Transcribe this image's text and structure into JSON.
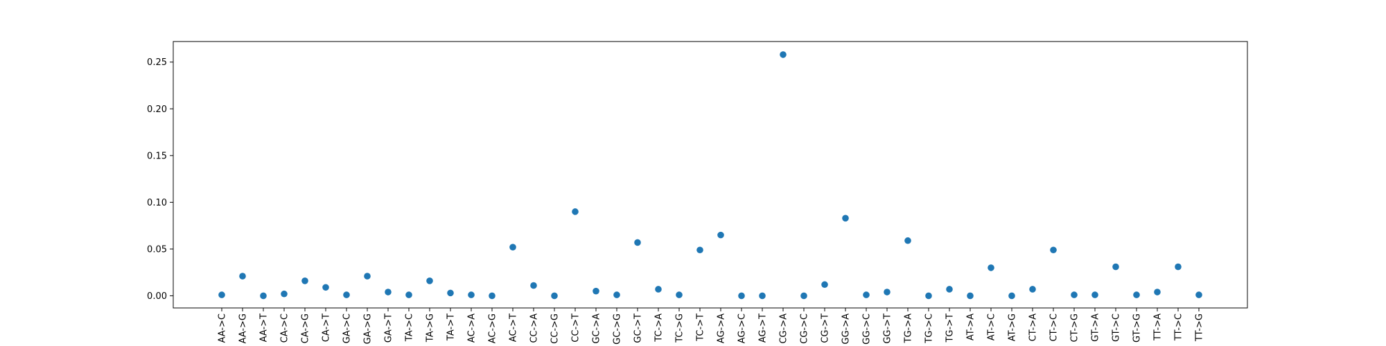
{
  "chart_data": {
    "type": "scatter",
    "title": "",
    "xlabel": "",
    "ylabel": "",
    "ylim": [
      -0.013,
      0.272
    ],
    "grid": false,
    "legend": "none",
    "marker_color": "#1f77b4",
    "yticks": [
      {
        "value": 0.0,
        "label": "0.00"
      },
      {
        "value": 0.05,
        "label": "0.05"
      },
      {
        "value": 0.1,
        "label": "0.10"
      },
      {
        "value": 0.15,
        "label": "0.15"
      },
      {
        "value": 0.2,
        "label": "0.20"
      },
      {
        "value": 0.25,
        "label": "0.25"
      }
    ],
    "categories": [
      "AA->C",
      "AA->G",
      "AA->T",
      "CA->C",
      "CA->G",
      "CA->T",
      "GA->C",
      "GA->G",
      "GA->T",
      "TA->C",
      "TA->G",
      "TA->T",
      "AC->A",
      "AC->G",
      "AC->T",
      "CC->A",
      "CC->G",
      "CC->T",
      "GC->A",
      "GC->G",
      "GC->T",
      "TC->A",
      "TC->G",
      "TC->T",
      "AG->A",
      "AG->C",
      "AG->T",
      "CG->A",
      "CG->C",
      "CG->T",
      "GG->A",
      "GG->C",
      "GG->T",
      "TG->A",
      "TG->C",
      "TG->T",
      "AT->A",
      "AT->C",
      "AT->G",
      "CT->A",
      "CT->C",
      "CT->G",
      "GT->A",
      "GT->C",
      "GT->G",
      "TT->A",
      "TT->C",
      "TT->G"
    ],
    "values": [
      0.001,
      0.021,
      0.0,
      0.002,
      0.016,
      0.009,
      0.001,
      0.021,
      0.004,
      0.001,
      0.016,
      0.003,
      0.001,
      0.0,
      0.052,
      0.011,
      0.0,
      0.09,
      0.005,
      0.001,
      0.057,
      0.007,
      0.001,
      0.049,
      0.065,
      0.0,
      0.0,
      0.258,
      0.0,
      0.012,
      0.083,
      0.001,
      0.004,
      0.059,
      0.0,
      0.007,
      0.0,
      0.03,
      0.0,
      0.007,
      0.049,
      0.001,
      0.001,
      0.031,
      0.001,
      0.004,
      0.031,
      0.001
    ]
  }
}
